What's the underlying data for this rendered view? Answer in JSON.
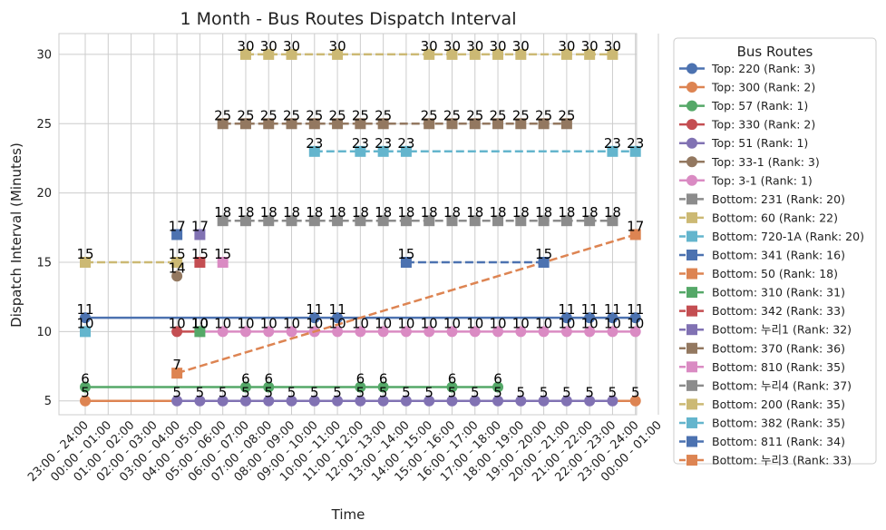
{
  "chart_data": {
    "type": "line",
    "title": "1 Month - Bus Routes Dispatch Interval",
    "xlabel": "Time",
    "ylabel": "Dispatch Interval (Minutes)",
    "grid": true,
    "legend_title": "Bus Routes",
    "legend_position": "outside-right",
    "categories": [
      "23:00 - 24:00",
      "00:00 - 01:00",
      "01:00 - 02:00",
      "02:00 - 03:00",
      "03:00 - 04:00",
      "04:00 - 05:00",
      "05:00 - 06:00",
      "06:00 - 07:00",
      "07:00 - 08:00",
      "08:00 - 09:00",
      "09:00 - 10:00",
      "10:00 - 11:00",
      "11:00 - 12:00",
      "12:00 - 13:00",
      "13:00 - 14:00",
      "14:00 - 15:00",
      "15:00 - 16:00",
      "16:00 - 17:00",
      "17:00 - 18:00",
      "18:00 - 19:00",
      "19:00 - 20:00",
      "20:00 - 21:00",
      "21:00 - 22:00",
      "22:00 - 23:00",
      "23:00 - 24:00",
      "00:00 - 01:00"
    ],
    "yticks": [
      5,
      10,
      15,
      20,
      25,
      30
    ],
    "ylim": [
      4,
      31.5
    ],
    "series": [
      {
        "name": "Top: 220 (Rank: 3)",
        "color": "#4c72b0",
        "marker": "circle",
        "dash": false,
        "points": [
          [
            0,
            11
          ],
          [
            10,
            11
          ],
          [
            11,
            11
          ],
          [
            21,
            11
          ],
          [
            22,
            11
          ],
          [
            23,
            11
          ],
          [
            24,
            11
          ]
        ]
      },
      {
        "name": "Top: 300 (Rank: 2)",
        "color": "#dd8452",
        "marker": "circle",
        "dash": false,
        "points": [
          [
            0,
            5
          ],
          [
            24,
            5
          ]
        ]
      },
      {
        "name": "Top: 57 (Rank: 1)",
        "color": "#55a868",
        "marker": "circle",
        "dash": false,
        "points": [
          [
            0,
            6
          ],
          [
            7,
            6
          ],
          [
            8,
            6
          ],
          [
            12,
            6
          ],
          [
            13,
            6
          ],
          [
            16,
            6
          ],
          [
            18,
            6
          ]
        ]
      },
      {
        "name": "Top: 330 (Rank: 2)",
        "color": "#c44e52",
        "marker": "circle",
        "dash": false,
        "points": [
          [
            4,
            10
          ],
          [
            5,
            10
          ]
        ]
      },
      {
        "name": "Top: 51 (Rank: 1)",
        "color": "#8172b3",
        "marker": "circle",
        "dash": false,
        "points": [
          [
            4,
            5
          ],
          [
            5,
            5
          ],
          [
            6,
            5
          ],
          [
            7,
            5
          ],
          [
            8,
            5
          ],
          [
            9,
            5
          ],
          [
            10,
            5
          ],
          [
            11,
            5
          ],
          [
            12,
            5
          ],
          [
            13,
            5
          ],
          [
            14,
            5
          ],
          [
            15,
            5
          ],
          [
            16,
            5
          ],
          [
            17,
            5
          ],
          [
            18,
            5
          ],
          [
            19,
            5
          ],
          [
            20,
            5
          ],
          [
            21,
            5
          ],
          [
            22,
            5
          ],
          [
            23,
            5
          ]
        ]
      },
      {
        "name": "Top: 33-1 (Rank: 3)",
        "color": "#937860",
        "marker": "circle",
        "dash": false,
        "points": [
          [
            4,
            14
          ]
        ]
      },
      {
        "name": "Top: 3-1 (Rank: 1)",
        "color": "#da8bc3",
        "marker": "circle",
        "dash": false,
        "points": [
          [
            5,
            10
          ],
          [
            6,
            10
          ],
          [
            7,
            10
          ],
          [
            8,
            10
          ],
          [
            9,
            10
          ],
          [
            10,
            10
          ],
          [
            11,
            10
          ],
          [
            12,
            10
          ],
          [
            13,
            10
          ],
          [
            14,
            10
          ],
          [
            15,
            10
          ],
          [
            16,
            10
          ],
          [
            17,
            10
          ],
          [
            18,
            10
          ],
          [
            19,
            10
          ],
          [
            20,
            10
          ],
          [
            21,
            10
          ],
          [
            22,
            10
          ],
          [
            23,
            10
          ],
          [
            24,
            10
          ]
        ]
      },
      {
        "name": "Bottom: 231 (Rank: 20)",
        "color": "#8c8c8c",
        "marker": "square",
        "dash": true,
        "points": []
      },
      {
        "name": "Bottom: 60 (Rank: 22)",
        "color": "#ccb974",
        "marker": "square",
        "dash": true,
        "points": [
          [
            7,
            30
          ],
          [
            8,
            30
          ],
          [
            9,
            30
          ],
          [
            11,
            30
          ],
          [
            15,
            30
          ],
          [
            16,
            30
          ],
          [
            17,
            30
          ],
          [
            18,
            30
          ],
          [
            19,
            30
          ],
          [
            21,
            30
          ],
          [
            22,
            30
          ],
          [
            23,
            30
          ]
        ]
      },
      {
        "name": "Bottom: 720-1A (Rank: 20)",
        "color": "#64b5cd",
        "marker": "square",
        "dash": true,
        "points": [
          [
            0,
            10
          ]
        ]
      },
      {
        "name": "Bottom: 341 (Rank: 16)",
        "color": "#4c72b0",
        "marker": "square",
        "dash": true,
        "points": [
          [
            4,
            17
          ]
        ]
      },
      {
        "name": "Bottom: 50 (Rank: 18)",
        "color": "#dd8452",
        "marker": "square",
        "dash": true,
        "points": [
          [
            4,
            7
          ],
          [
            24,
            17
          ]
        ]
      },
      {
        "name": "Bottom: 310 (Rank: 31)",
        "color": "#55a868",
        "marker": "square",
        "dash": true,
        "points": [
          [
            5,
            10
          ]
        ]
      },
      {
        "name": "Bottom: 342 (Rank: 33)",
        "color": "#c44e52",
        "marker": "square",
        "dash": true,
        "points": [
          [
            5,
            15
          ]
        ]
      },
      {
        "name": "Bottom: 누리1 (Rank: 32)",
        "color": "#8172b3",
        "marker": "square",
        "dash": true,
        "points": [
          [
            5,
            17
          ]
        ]
      },
      {
        "name": "Bottom: 370 (Rank: 36)",
        "color": "#937860",
        "marker": "square",
        "dash": true,
        "points": [
          [
            6,
            25
          ],
          [
            7,
            25
          ],
          [
            8,
            25
          ],
          [
            9,
            25
          ],
          [
            10,
            25
          ],
          [
            11,
            25
          ],
          [
            12,
            25
          ],
          [
            13,
            25
          ],
          [
            15,
            25
          ],
          [
            16,
            25
          ],
          [
            17,
            25
          ],
          [
            18,
            25
          ],
          [
            19,
            25
          ],
          [
            20,
            25
          ],
          [
            21,
            25
          ]
        ]
      },
      {
        "name": "Bottom: 810 (Rank: 35)",
        "color": "#da8bc3",
        "marker": "square",
        "dash": true,
        "points": [
          [
            6,
            15
          ]
        ]
      },
      {
        "name": "Bottom: 누리4 (Rank: 37)",
        "color": "#8c8c8c",
        "marker": "square",
        "dash": true,
        "points": [
          [
            6,
            18
          ],
          [
            7,
            18
          ],
          [
            8,
            18
          ],
          [
            9,
            18
          ],
          [
            10,
            18
          ],
          [
            11,
            18
          ],
          [
            12,
            18
          ],
          [
            13,
            18
          ],
          [
            14,
            18
          ],
          [
            15,
            18
          ],
          [
            16,
            18
          ],
          [
            17,
            18
          ],
          [
            18,
            18
          ],
          [
            19,
            18
          ],
          [
            20,
            18
          ],
          [
            21,
            18
          ],
          [
            22,
            18
          ],
          [
            23,
            18
          ]
        ]
      },
      {
        "name": "Bottom: 200 (Rank: 35)",
        "color": "#ccb974",
        "marker": "square",
        "dash": true,
        "points": [
          [
            0,
            15
          ],
          [
            4,
            15
          ]
        ]
      },
      {
        "name": "Bottom: 382 (Rank: 35)",
        "color": "#64b5cd",
        "marker": "square",
        "dash": true,
        "points": [
          [
            10,
            23
          ],
          [
            12,
            23
          ],
          [
            13,
            23
          ],
          [
            14,
            23
          ],
          [
            23,
            23
          ],
          [
            24,
            23
          ]
        ]
      },
      {
        "name": "Bottom: 811 (Rank: 34)",
        "color": "#4c72b0",
        "marker": "square",
        "dash": true,
        "points": [
          [
            14,
            15
          ],
          [
            20,
            15
          ]
        ]
      },
      {
        "name": "Bottom: 누리3 (Rank: 33)",
        "color": "#dd8452",
        "marker": "square",
        "dash": true,
        "points": []
      }
    ]
  }
}
